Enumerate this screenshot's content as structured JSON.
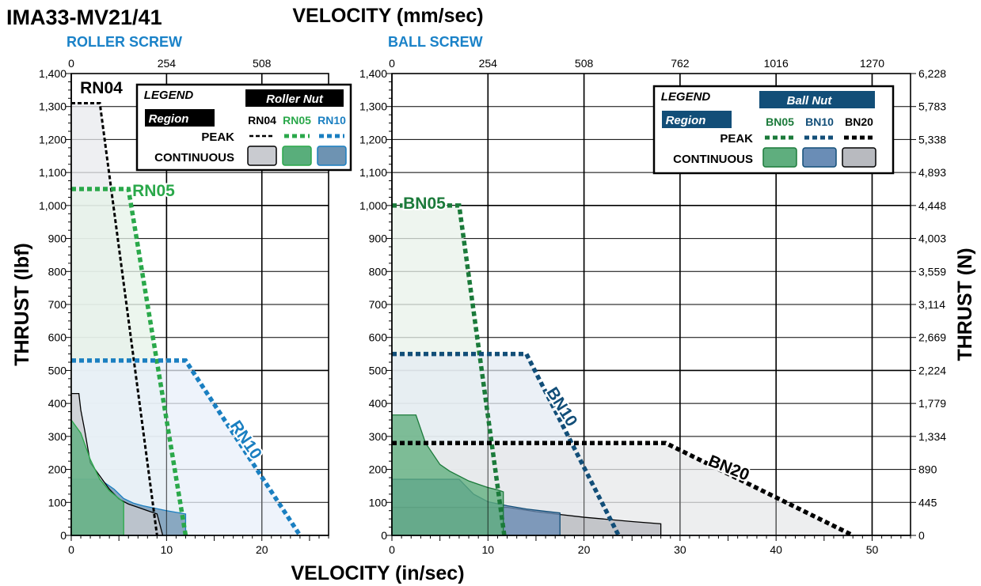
{
  "header": {
    "model": "IMA33-MV21/41",
    "velocity_title": "VELOCITY (mm/sec)",
    "velocity_bottom": "VELOCITY (in/sec)",
    "thrust_lbf": "THRUST (lbf)",
    "thrust_n": "THRUST (N)"
  },
  "colors": {
    "black": "#000000",
    "green": "#1b7a3a",
    "bright_green": "#2aa84a",
    "blue": "#1a7fc1",
    "navy": "#124e78",
    "title_blue": "#1a82c8"
  },
  "chart_data": [
    {
      "type": "area",
      "title": "ROLLER SCREW",
      "xlabel": "VELOCITY (in/sec)",
      "x2label": "VELOCITY (mm/sec)",
      "ylabel": "THRUST (lbf)",
      "xlim": [
        0,
        27
      ],
      "ylim": [
        0,
        1400
      ],
      "x_ticks": [
        0,
        10,
        20
      ],
      "x2_ticks": [
        0,
        254,
        508
      ],
      "y_ticks": [
        0,
        100,
        200,
        300,
        400,
        500,
        600,
        700,
        800,
        900,
        1000,
        1100,
        1200,
        1300,
        1400
      ],
      "y_tick_labels": [
        "0",
        "100",
        "200",
        "300",
        "400",
        "500",
        "600",
        "700",
        "800",
        "900",
        "1,000",
        "1,100",
        "1,200",
        "1,300",
        "1,400"
      ],
      "grid": true,
      "legend": {
        "position": "top-right",
        "title": "LEGEND",
        "region": "Region",
        "nut_title": "Roller Nut",
        "peak": "PEAK",
        "continuous": "CONTINUOUS",
        "names": [
          "RN04",
          "RN05",
          "RN10"
        ]
      },
      "series": [
        {
          "name": "RN04",
          "color": "#000000",
          "peak": [
            [
              0,
              1310
            ],
            [
              3,
              1310
            ],
            [
              9,
              0
            ]
          ],
          "continuous": [
            [
              0,
              430
            ],
            [
              0.8,
              430
            ],
            [
              1,
              380
            ],
            [
              1.4,
              320
            ],
            [
              2,
              220
            ],
            [
              3,
              180
            ],
            [
              4,
              140
            ],
            [
              5,
              110
            ],
            [
              6,
              95
            ],
            [
              7,
              85
            ],
            [
              8,
              75
            ],
            [
              9,
              65
            ],
            [
              9.6,
              0
            ]
          ]
        },
        {
          "name": "RN05",
          "color": "#2aa84a",
          "peak": [
            [
              0,
              1050
            ],
            [
              6,
              1050
            ],
            [
              12,
              0
            ]
          ],
          "continuous": [
            [
              0,
              350
            ],
            [
              1,
              310
            ],
            [
              2,
              230
            ],
            [
              3,
              170
            ],
            [
              4,
              135
            ],
            [
              5,
              112
            ],
            [
              5.5,
              100
            ],
            [
              5.5,
              0
            ]
          ]
        },
        {
          "name": "RN10",
          "color": "#1a7fc1",
          "peak": [
            [
              0,
              530
            ],
            [
              12,
              530
            ],
            [
              24,
              0
            ]
          ],
          "continuous": [
            [
              0,
              170
            ],
            [
              3,
              170
            ],
            [
              4.5,
              140
            ],
            [
              5.5,
              112
            ],
            [
              6.5,
              98
            ],
            [
              7.5,
              90
            ],
            [
              10,
              75
            ],
            [
              12,
              65
            ],
            [
              12,
              0
            ]
          ]
        }
      ],
      "annotations": [
        "RN04",
        "RN05",
        "RN10"
      ]
    },
    {
      "type": "area",
      "title": "BALL SCREW",
      "xlabel": "VELOCITY (in/sec)",
      "x2label": "VELOCITY (mm/sec)",
      "ylabel": "THRUST (lbf)",
      "y2label": "THRUST (N)",
      "xlim": [
        0,
        54
      ],
      "ylim": [
        0,
        1400
      ],
      "x_ticks": [
        0,
        10,
        20,
        30,
        40,
        50
      ],
      "x2_ticks": [
        0,
        254,
        508,
        762,
        1016,
        1270
      ],
      "y_ticks": [
        0,
        100,
        200,
        300,
        400,
        500,
        600,
        700,
        800,
        900,
        1000,
        1100,
        1200,
        1300,
        1400
      ],
      "y_tick_labels": [
        "0",
        "100",
        "200",
        "300",
        "400",
        "500",
        "600",
        "700",
        "800",
        "900",
        "1,000",
        "1,100",
        "1,200",
        "1,300",
        "1,400"
      ],
      "y2_tick_labels": [
        "0",
        "445",
        "890",
        "1,334",
        "1,779",
        "2,224",
        "2,669",
        "3,114",
        "3,559",
        "4,003",
        "4,448",
        "4,893",
        "5,338",
        "5,783",
        "6,228"
      ],
      "grid": true,
      "legend": {
        "position": "top-right",
        "title": "LEGEND",
        "region": "Region",
        "nut_title": "Ball Nut",
        "peak": "PEAK",
        "continuous": "CONTINUOUS",
        "names": [
          "BN05",
          "BN10",
          "BN20"
        ]
      },
      "series": [
        {
          "name": "BN05",
          "color": "#1b7a3a",
          "peak": [
            [
              0,
              1000
            ],
            [
              7,
              1000
            ],
            [
              11.7,
              0
            ]
          ],
          "continuous": [
            [
              0,
              365
            ],
            [
              2.5,
              365
            ],
            [
              3.5,
              280
            ],
            [
              5,
              215
            ],
            [
              6,
              195
            ],
            [
              7,
              180
            ],
            [
              8,
              165
            ],
            [
              9,
              155
            ],
            [
              10,
              145
            ],
            [
              11,
              138
            ],
            [
              11.6,
              132
            ],
            [
              11.6,
              0
            ]
          ]
        },
        {
          "name": "BN10",
          "color": "#124e78",
          "peak": [
            [
              0,
              550
            ],
            [
              14,
              550
            ],
            [
              23.6,
              0
            ]
          ],
          "continuous": [
            [
              0,
              170
            ],
            [
              7,
              170
            ],
            [
              8.5,
              125
            ],
            [
              10,
              102
            ],
            [
              12,
              90
            ],
            [
              14,
              80
            ],
            [
              16,
              73
            ],
            [
              17.5,
              68
            ],
            [
              17.5,
              0
            ]
          ]
        },
        {
          "name": "BN20",
          "color": "#000000",
          "peak": [
            [
              0,
              280
            ],
            [
              28.5,
              280
            ],
            [
              48,
              0
            ]
          ],
          "continuous": [
            [
              0,
              85
            ],
            [
              12,
              85
            ],
            [
              15,
              72
            ],
            [
              17,
              65
            ],
            [
              20,
              55
            ],
            [
              25,
              42
            ],
            [
              28,
              35
            ],
            [
              28,
              0
            ]
          ]
        }
      ],
      "annotations": [
        "BN05",
        "BN10",
        "BN20"
      ]
    }
  ]
}
